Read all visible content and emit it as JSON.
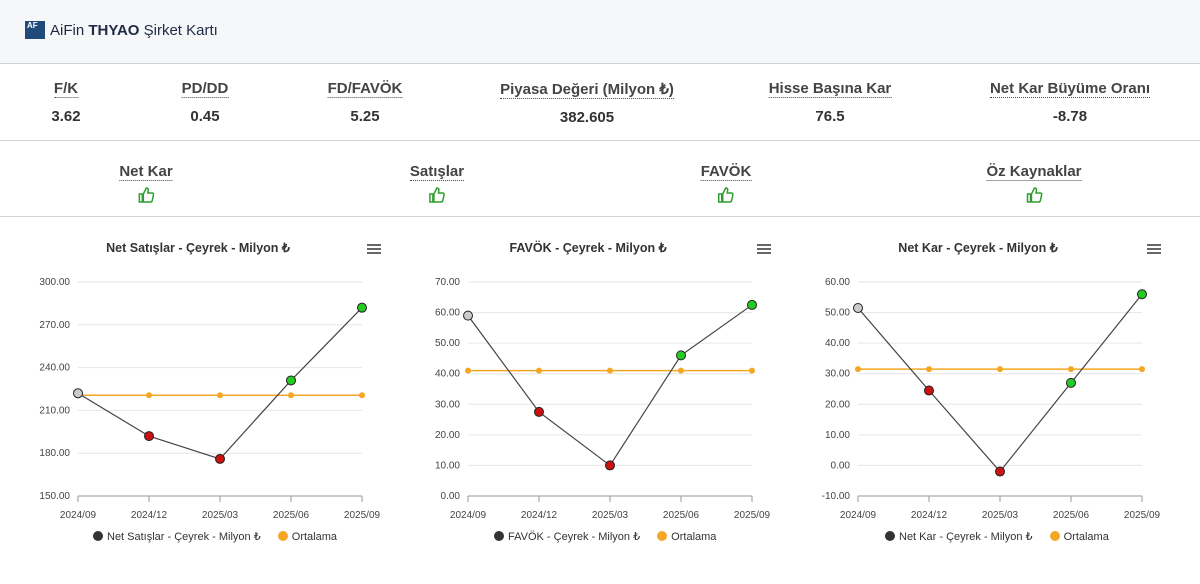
{
  "header": {
    "logo_text": "AF",
    "brand_prefix": "AiFin ",
    "ticker": "THYAO",
    "brand_suffix": " Şirket Kartı"
  },
  "metrics": [
    {
      "label": "F/K",
      "value": "3.62"
    },
    {
      "label": "PD/DD",
      "value": "0.45"
    },
    {
      "label": "FD/FAVÖK",
      "value": "5.25"
    },
    {
      "label": "Piyasa Değeri (Milyon ₺)",
      "value": "382.605"
    },
    {
      "label": "Hisse Başına Kar",
      "value": "76.5"
    },
    {
      "label": "Net Kar Büyüme Oranı",
      "value": "-8.78"
    }
  ],
  "signals": [
    {
      "label": "Net Kar",
      "icon": "thumbs-up-icon"
    },
    {
      "label": "Satışlar",
      "icon": "thumbs-up-icon"
    },
    {
      "label": "FAVÖK",
      "icon": "thumbs-up-icon"
    },
    {
      "label": "Öz Kaynaklar",
      "icon": "thumbs-up-icon"
    }
  ],
  "colors": {
    "positive": "#2e9e2e",
    "up_point": "#22cc22",
    "down_point": "#cc1111",
    "average": "#f5a623",
    "line": "#444444"
  },
  "chart_data": [
    {
      "type": "line",
      "title": "Net Satışlar - Çeyrek - Milyon ₺",
      "x": [
        "2024/09",
        "2024/12",
        "2025/03",
        "2025/06",
        "2025/09"
      ],
      "ylim": [
        150,
        300
      ],
      "yticks": [
        "300.00",
        "270.00",
        "240.00",
        "210.00",
        "180.00",
        "150.00"
      ],
      "series": [
        {
          "name": "Net Satışlar - Çeyrek - Milyon ₺",
          "values": [
            222,
            192,
            176,
            231,
            282
          ]
        },
        {
          "name": "Ortalama",
          "values": [
            220.6,
            220.6,
            220.6,
            220.6,
            220.6
          ]
        }
      ],
      "legend": "bottom"
    },
    {
      "type": "line",
      "title": "FAVÖK - Çeyrek - Milyon ₺",
      "x": [
        "2024/09",
        "2024/12",
        "2025/03",
        "2025/06",
        "2025/09"
      ],
      "ylim": [
        0,
        70
      ],
      "yticks": [
        "70.00",
        "60.00",
        "50.00",
        "40.00",
        "30.00",
        "20.00",
        "10.00",
        "0.00"
      ],
      "series": [
        {
          "name": "FAVÖK - Çeyrek - Milyon ₺",
          "values": [
            59,
            27.5,
            10,
            46,
            62.5
          ]
        },
        {
          "name": "Ortalama",
          "values": [
            41,
            41,
            41,
            41,
            41
          ]
        }
      ],
      "legend": "bottom"
    },
    {
      "type": "line",
      "title": "Net Kar - Çeyrek - Milyon ₺",
      "x": [
        "2024/09",
        "2024/12",
        "2025/03",
        "2025/06",
        "2025/09"
      ],
      "ylim": [
        -10,
        60
      ],
      "yticks": [
        "60.00",
        "50.00",
        "40.00",
        "30.00",
        "20.00",
        "10.00",
        "0.00",
        "-10.00"
      ],
      "series": [
        {
          "name": "Net Kar - Çeyrek - Milyon ₺",
          "values": [
            51.5,
            24.5,
            -2,
            27,
            56
          ]
        },
        {
          "name": "Ortalama",
          "values": [
            31.5,
            31.5,
            31.5,
            31.5,
            31.5
          ]
        }
      ],
      "legend": "bottom"
    }
  ]
}
